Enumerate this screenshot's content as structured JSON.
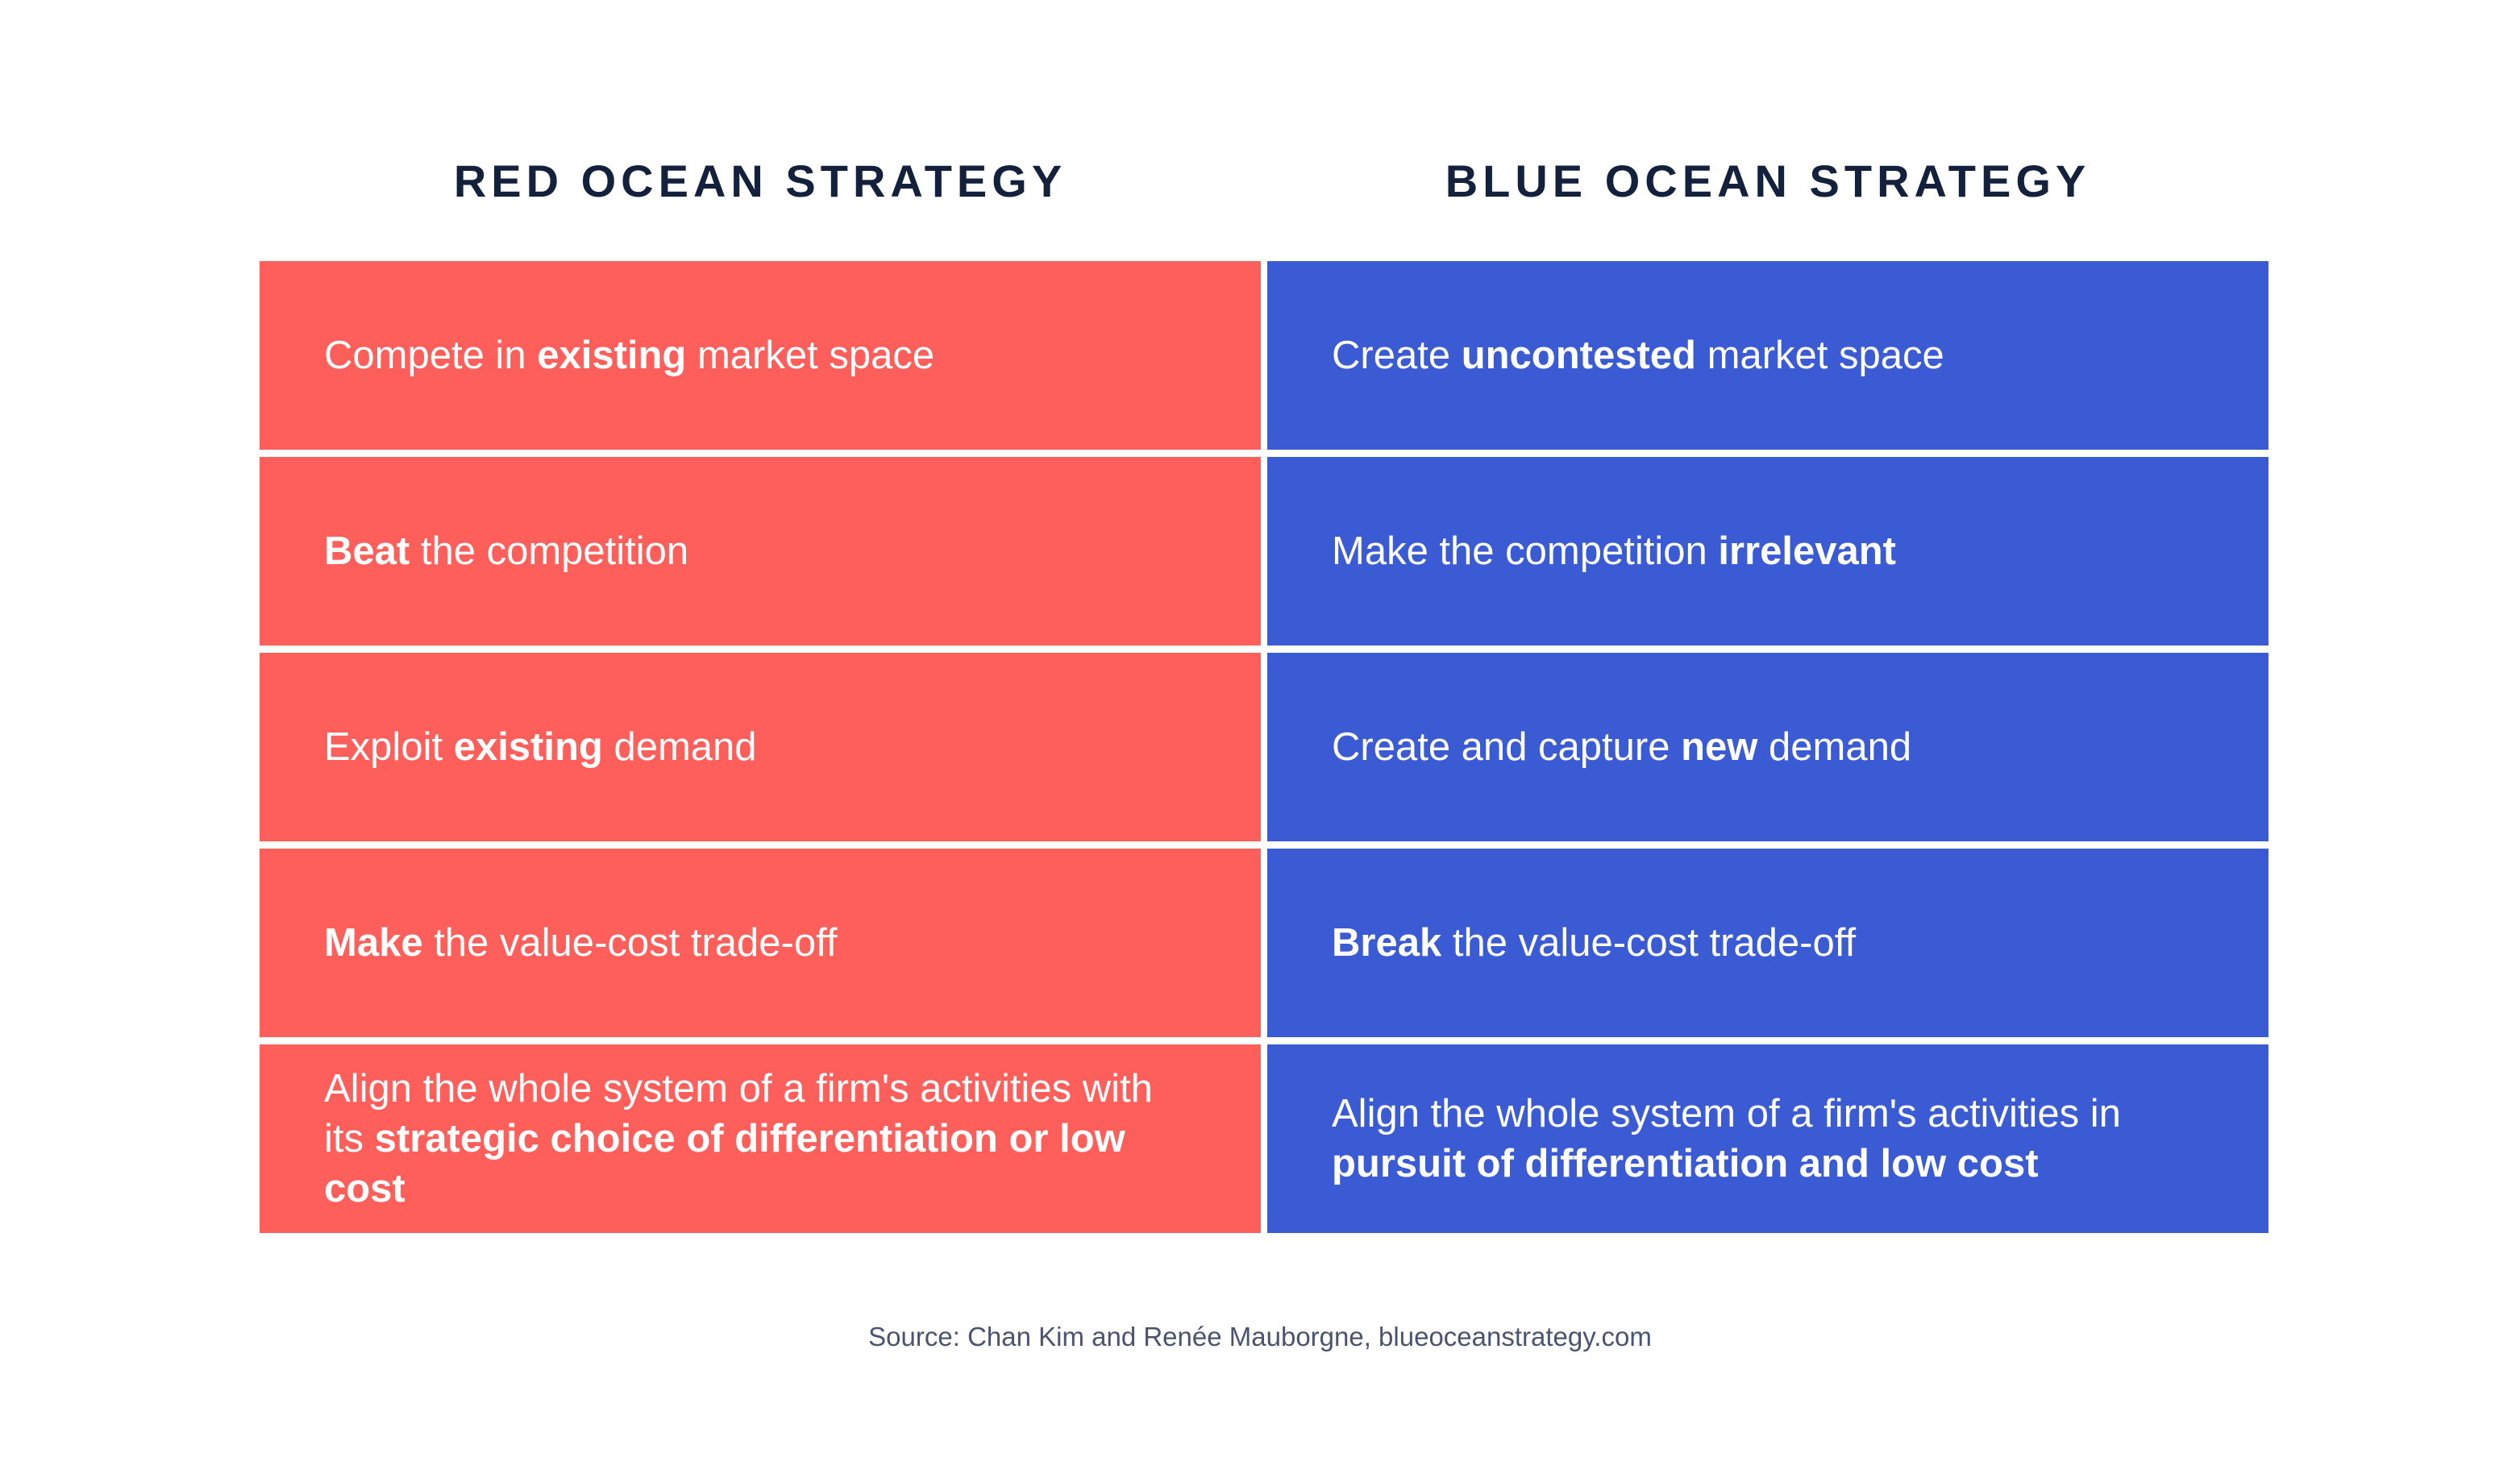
{
  "headings": {
    "red": "RED OCEAN STRATEGY",
    "blue": "BLUE OCEAN STRATEGY"
  },
  "colors": {
    "red": "#ff5f5a",
    "blue": "#3a5bd4",
    "heading": "#14213d",
    "source": "#4a5470"
  },
  "rows": [
    {
      "red": {
        "pre": "Compete in ",
        "bold": "existing",
        "post": " market space"
      },
      "blue": {
        "pre": "Create ",
        "bold": "uncontested",
        "post": " market space"
      }
    },
    {
      "red": {
        "pre": "",
        "bold": "Beat",
        "post": " the competition"
      },
      "blue": {
        "pre": "Make the competition ",
        "bold": "irrelevant",
        "post": ""
      }
    },
    {
      "red": {
        "pre": "Exploit ",
        "bold": "existing",
        "post": " demand"
      },
      "blue": {
        "pre": "Create and capture ",
        "bold": "new",
        "post": " demand"
      }
    },
    {
      "red": {
        "pre": "",
        "bold": "Make",
        "post": " the value-cost trade-off"
      },
      "blue": {
        "pre": "",
        "bold": "Break",
        "post": " the value-cost trade-off"
      }
    },
    {
      "red": {
        "pre": "Align the whole system of a firm's activities with its ",
        "bold": "strategic choice of differentiation or low cost",
        "post": ""
      },
      "blue": {
        "pre": "Align the whole system of a firm's activities in ",
        "bold": "pursuit of differentiation and low cost",
        "post": ""
      }
    }
  ],
  "source": "Source: Chan Kim and Renée Mauborgne, blueoceanstrategy.com"
}
